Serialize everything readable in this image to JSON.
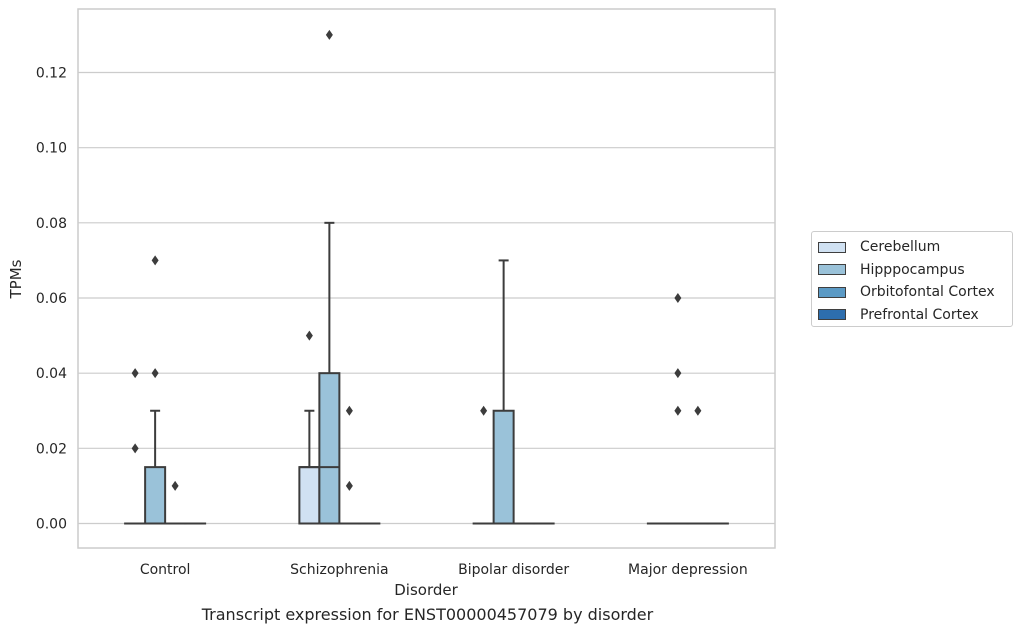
{
  "chart_data": {
    "type": "box",
    "title": "",
    "caption": "Transcript expression for ENST00000457079 by disorder",
    "xlabel": "Disorder",
    "ylabel": "TPMs",
    "categories": [
      "Control",
      "Schizophrenia",
      "Bipolar disorder",
      "Major depression"
    ],
    "ylim": [
      -0.0065,
      0.1365
    ],
    "yticks": [
      0.0,
      0.02,
      0.04,
      0.06,
      0.08,
      0.1,
      0.12
    ],
    "ytick_labels": [
      "0.00",
      "0.02",
      "0.04",
      "0.06",
      "0.08",
      "0.10",
      "0.12"
    ],
    "grid": true,
    "legend_position": "right",
    "series": [
      {
        "name": "Cerebellum",
        "color": "#d0e1f2",
        "boxes": [
          {
            "q1": 0,
            "median": 0,
            "q3": 0,
            "whisker_low": 0,
            "whisker_high": 0,
            "outliers": [
              0.02,
              0.04
            ]
          },
          {
            "q1": 0,
            "median": 0.015,
            "q3": 0.015,
            "whisker_low": 0,
            "whisker_high": 0.03,
            "outliers": [
              0.05
            ]
          },
          {
            "q1": 0,
            "median": 0,
            "q3": 0,
            "whisker_low": 0,
            "whisker_high": 0,
            "outliers": [
              0.03
            ]
          },
          {
            "q1": 0,
            "median": 0,
            "q3": 0,
            "whisker_low": 0,
            "whisker_high": 0,
            "outliers": []
          }
        ]
      },
      {
        "name": "Hipppocampus",
        "color": "#9ac2d9",
        "boxes": [
          {
            "q1": 0,
            "median": 0,
            "q3": 0.015,
            "whisker_low": 0,
            "whisker_high": 0.03,
            "outliers": [
              0.04,
              0.07
            ]
          },
          {
            "q1": 0,
            "median": 0.015,
            "q3": 0.04,
            "whisker_low": 0,
            "whisker_high": 0.08,
            "outliers": [
              0.13
            ]
          },
          {
            "q1": 0,
            "median": 0,
            "q3": 0.03,
            "whisker_low": 0,
            "whisker_high": 0.07,
            "outliers": []
          },
          {
            "q1": 0,
            "median": 0,
            "q3": 0,
            "whisker_low": 0,
            "whisker_high": 0,
            "outliers": [
              0.03,
              0.04,
              0.06
            ]
          }
        ]
      },
      {
        "name": "Orbitofontal Cortex",
        "color": "#5b9ac5",
        "boxes": [
          {
            "q1": 0,
            "median": 0,
            "q3": 0,
            "whisker_low": 0,
            "whisker_high": 0,
            "outliers": [
              0.01
            ]
          },
          {
            "q1": 0,
            "median": 0,
            "q3": 0,
            "whisker_low": 0,
            "whisker_high": 0,
            "outliers": [
              0.01,
              0.03
            ]
          },
          {
            "q1": 0,
            "median": 0,
            "q3": 0,
            "whisker_low": 0,
            "whisker_high": 0,
            "outliers": []
          },
          {
            "q1": 0,
            "median": 0,
            "q3": 0,
            "whisker_low": 0,
            "whisker_high": 0,
            "outliers": [
              0.03
            ]
          }
        ]
      },
      {
        "name": "Prefrontal Cortex",
        "color": "#2d6eae",
        "boxes": [
          {
            "q1": 0,
            "median": 0,
            "q3": 0,
            "whisker_low": 0,
            "whisker_high": 0,
            "outliers": []
          },
          {
            "q1": 0,
            "median": 0,
            "q3": 0,
            "whisker_low": 0,
            "whisker_high": 0,
            "outliers": []
          },
          {
            "q1": 0,
            "median": 0,
            "q3": 0,
            "whisker_low": 0,
            "whisker_high": 0,
            "outliers": []
          },
          {
            "q1": 0,
            "median": 0,
            "q3": 0,
            "whisker_low": 0,
            "whisker_high": 0,
            "outliers": []
          }
        ]
      }
    ]
  }
}
